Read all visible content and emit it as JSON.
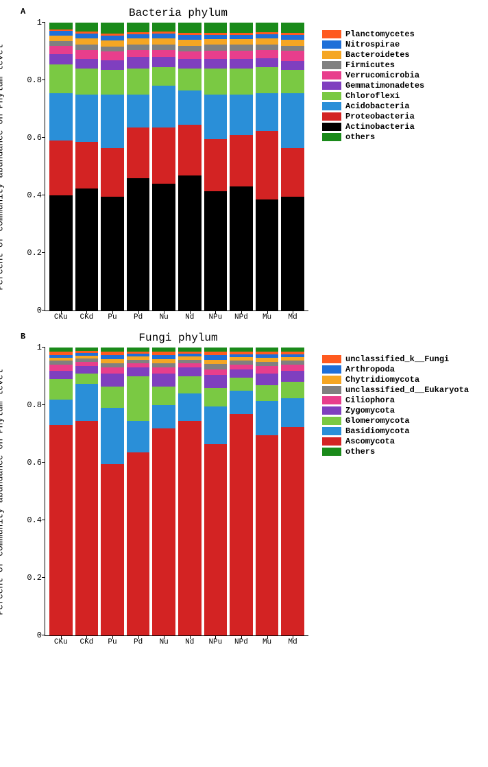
{
  "charts": [
    {
      "panel_label": "A",
      "title": "Bacteria phylum",
      "ylabel": "Percent of community abundance on Phylum level",
      "ylim": [
        0,
        1
      ],
      "yticks": [
        0,
        0.2,
        0.4,
        0.6,
        0.8,
        1
      ],
      "categories": [
        "CKu",
        "CKd",
        "Pu",
        "Pd",
        "Nu",
        "Nd",
        "NPu",
        "NPd",
        "Mu",
        "Md"
      ],
      "series": [
        {
          "name": "Actinobacteria",
          "color": "#000000"
        },
        {
          "name": "Proteobacteria",
          "color": "#d32323"
        },
        {
          "name": "Acidobacteria",
          "color": "#2a8fd8"
        },
        {
          "name": "Chloroflexi",
          "color": "#7ac943"
        },
        {
          "name": "Gemmatimonadetes",
          "color": "#7f3fbf"
        },
        {
          "name": "Verrucomicrobia",
          "color": "#e83e8c"
        },
        {
          "name": "Firmicutes",
          "color": "#808080"
        },
        {
          "name": "Bacteroidetes",
          "color": "#f5a623"
        },
        {
          "name": "Nitrospirae",
          "color": "#1e6fd8"
        },
        {
          "name": "Planctomycetes",
          "color": "#ff5a1f"
        },
        {
          "name": "others",
          "color": "#1a8a1a"
        }
      ],
      "legend_order": [
        9,
        8,
        7,
        6,
        5,
        4,
        3,
        2,
        1,
        0,
        10
      ],
      "data": [
        [
          0.4,
          0.19,
          0.165,
          0.1,
          0.035,
          0.028,
          0.018,
          0.02,
          0.015,
          0.005,
          0.024
        ],
        [
          0.425,
          0.16,
          0.165,
          0.09,
          0.035,
          0.03,
          0.02,
          0.02,
          0.018,
          0.007,
          0.03
        ],
        [
          0.395,
          0.17,
          0.185,
          0.085,
          0.035,
          0.03,
          0.018,
          0.02,
          0.018,
          0.007,
          0.037
        ],
        [
          0.46,
          0.175,
          0.115,
          0.09,
          0.04,
          0.025,
          0.02,
          0.02,
          0.015,
          0.007,
          0.033
        ],
        [
          0.44,
          0.195,
          0.145,
          0.065,
          0.035,
          0.025,
          0.02,
          0.02,
          0.018,
          0.007,
          0.03
        ],
        [
          0.47,
          0.175,
          0.12,
          0.075,
          0.035,
          0.025,
          0.02,
          0.02,
          0.018,
          0.007,
          0.035
        ],
        [
          0.415,
          0.18,
          0.155,
          0.09,
          0.035,
          0.028,
          0.02,
          0.02,
          0.015,
          0.007,
          0.035
        ],
        [
          0.43,
          0.18,
          0.14,
          0.09,
          0.035,
          0.028,
          0.02,
          0.02,
          0.015,
          0.007,
          0.035
        ],
        [
          0.385,
          0.24,
          0.13,
          0.09,
          0.032,
          0.028,
          0.02,
          0.02,
          0.015,
          0.007,
          0.033
        ],
        [
          0.395,
          0.17,
          0.19,
          0.08,
          0.032,
          0.035,
          0.018,
          0.02,
          0.018,
          0.007,
          0.035
        ]
      ]
    },
    {
      "panel_label": "B",
      "title": "Fungi phylum",
      "ylabel": "Percent of community abundance on Phylum level",
      "ylim": [
        0,
        1
      ],
      "yticks": [
        0,
        0.2,
        0.4,
        0.6,
        0.8,
        1
      ],
      "categories": [
        "CKu",
        "CKd",
        "Pu",
        "Pd",
        "Nu",
        "Nd",
        "NPu",
        "NPd",
        "Mu",
        "Md"
      ],
      "series": [
        {
          "name": "Ascomycota",
          "color": "#d32323"
        },
        {
          "name": "Basidiomycota",
          "color": "#2a8fd8"
        },
        {
          "name": "Glomeromycota",
          "color": "#7ac943"
        },
        {
          "name": "Zygomycota",
          "color": "#7f3fbf"
        },
        {
          "name": "Ciliophora",
          "color": "#e83e8c"
        },
        {
          "name": "unclassified_d__Eukaryota",
          "color": "#808080"
        },
        {
          "name": "Chytridiomycota",
          "color": "#f5a623"
        },
        {
          "name": "Arthropoda",
          "color": "#1e6fd8"
        },
        {
          "name": "unclassified_k__Fungi",
          "color": "#ff5a1f"
        },
        {
          "name": "others",
          "color": "#1a8a1a"
        }
      ],
      "legend_order": [
        8,
        7,
        6,
        5,
        4,
        3,
        2,
        1,
        0,
        9
      ],
      "data": [
        [
          0.73,
          0.09,
          0.07,
          0.03,
          0.02,
          0.015,
          0.01,
          0.01,
          0.01,
          0.015
        ],
        [
          0.745,
          0.13,
          0.035,
          0.025,
          0.015,
          0.012,
          0.01,
          0.008,
          0.008,
          0.012
        ],
        [
          0.595,
          0.195,
          0.075,
          0.045,
          0.02,
          0.015,
          0.015,
          0.015,
          0.01,
          0.015
        ],
        [
          0.635,
          0.11,
          0.155,
          0.03,
          0.015,
          0.012,
          0.012,
          0.01,
          0.008,
          0.013
        ],
        [
          0.72,
          0.08,
          0.065,
          0.045,
          0.02,
          0.015,
          0.015,
          0.015,
          0.01,
          0.015
        ],
        [
          0.745,
          0.095,
          0.06,
          0.03,
          0.015,
          0.012,
          0.012,
          0.01,
          0.008,
          0.013
        ],
        [
          0.665,
          0.13,
          0.065,
          0.045,
          0.02,
          0.018,
          0.015,
          0.015,
          0.012,
          0.015
        ],
        [
          0.77,
          0.08,
          0.045,
          0.03,
          0.015,
          0.015,
          0.012,
          0.01,
          0.008,
          0.015
        ],
        [
          0.695,
          0.12,
          0.055,
          0.04,
          0.025,
          0.015,
          0.015,
          0.012,
          0.01,
          0.013
        ],
        [
          0.725,
          0.1,
          0.055,
          0.04,
          0.02,
          0.015,
          0.012,
          0.01,
          0.008,
          0.015
        ]
      ]
    }
  ],
  "title_fontsize": 16,
  "label_fontsize": 13,
  "tick_fontsize": 12,
  "legend_fontsize": 12,
  "background_color": "#ffffff"
}
